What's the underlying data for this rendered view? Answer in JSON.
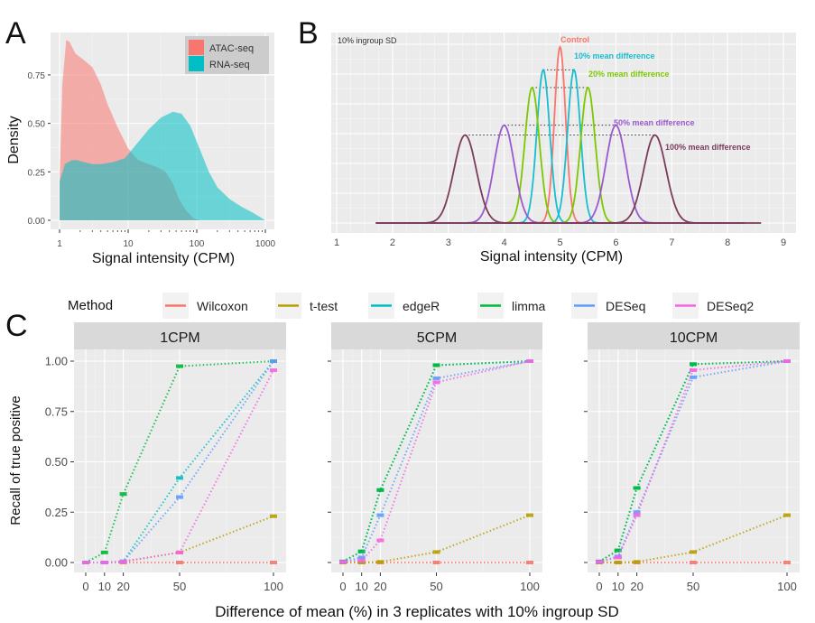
{
  "chart_data": [
    {
      "panel": "A",
      "type": "area",
      "title": "",
      "xlabel": "Signal intensity (CPM)",
      "ylabel": "Density",
      "xscale": "log10",
      "xlim": [
        1,
        1000
      ],
      "ylim": [
        0,
        0.95
      ],
      "xticks": [
        "1",
        "10",
        "100",
        "1000"
      ],
      "xtick_values": [
        1,
        10,
        100,
        1000
      ],
      "yticks": [
        "0.00",
        "0.25",
        "0.50",
        "0.75"
      ],
      "ytick_values": [
        0,
        0.25,
        0.5,
        0.75
      ],
      "grid": true,
      "legend_position": "top-right",
      "series": [
        {
          "name": "ATAC-seq",
          "color": "#F8766D",
          "x": [
            1,
            1.1,
            1.25,
            1.4,
            1.7,
            2.2,
            3,
            4,
            5,
            7,
            10,
            14,
            20,
            28,
            35,
            45,
            55,
            70,
            90,
            110
          ],
          "y": [
            0.2,
            0.7,
            0.93,
            0.92,
            0.86,
            0.83,
            0.79,
            0.7,
            0.6,
            0.48,
            0.37,
            0.31,
            0.29,
            0.27,
            0.25,
            0.19,
            0.11,
            0.05,
            0.01,
            0.0
          ]
        },
        {
          "name": "RNA-seq",
          "color": "#00BFC4",
          "x": [
            1,
            1.2,
            1.5,
            1.8,
            2.3,
            3,
            4,
            6,
            9,
            13,
            20,
            30,
            45,
            60,
            80,
            110,
            150,
            200,
            300,
            450,
            650,
            1000
          ],
          "y": [
            0.2,
            0.29,
            0.31,
            0.31,
            0.3,
            0.29,
            0.29,
            0.3,
            0.32,
            0.39,
            0.47,
            0.53,
            0.56,
            0.55,
            0.49,
            0.37,
            0.25,
            0.17,
            0.11,
            0.07,
            0.04,
            0.0
          ]
        }
      ]
    },
    {
      "panel": "B",
      "type": "line",
      "xlabel": "Signal intensity (CPM)",
      "ylabel": "",
      "xlim": [
        1,
        9
      ],
      "xticks": [
        "1",
        "2",
        "3",
        "4",
        "5",
        "6",
        "7",
        "8",
        "9"
      ],
      "xtick_values": [
        1,
        2,
        3,
        4,
        5,
        6,
        7,
        8,
        9
      ],
      "annotation_sd": "10% ingroup SD",
      "grid": true,
      "series": [
        {
          "name": "Control",
          "label": "Control",
          "color": "#F8766D",
          "means": [
            5.0
          ],
          "sd": 0.1
        },
        {
          "name": "10% mean difference",
          "label": "10% mean difference",
          "color": "#17BECF",
          "means": [
            4.7,
            5.25
          ],
          "sd": 0.115
        },
        {
          "name": "20% mean difference",
          "label": "20% mean difference",
          "color": "#7CC800",
          "means": [
            4.5,
            5.5
          ],
          "sd": 0.13
        },
        {
          "name": "50% mean difference",
          "label": "50% mean difference",
          "color": "#9B59D0",
          "means": [
            4.0,
            6.0
          ],
          "sd": 0.18
        },
        {
          "name": "100% mean difference",
          "label": "100% mean difference",
          "color": "#7B3B5A",
          "means": [
            3.3,
            6.7
          ],
          "sd": 0.2
        }
      ]
    },
    {
      "panel": "C",
      "type": "line",
      "legend_title": "Method",
      "legend_position": "top",
      "xlabel": "Difference of mean (%) in 3 replicates with 10% ingroup SD",
      "ylabel": "Recall of true positive",
      "x": [
        0,
        10,
        20,
        50,
        100
      ],
      "xticks": [
        "0",
        "10",
        "20",
        "50",
        "100"
      ],
      "yticks": [
        "0.00",
        "0.25",
        "0.50",
        "0.75",
        "1.00"
      ],
      "ytick_values": [
        0,
        0.25,
        0.5,
        0.75,
        1.0
      ],
      "ylim": [
        -0.05,
        1.05
      ],
      "xlim": [
        -6,
        106
      ],
      "methods": [
        {
          "name": "Wilcoxon",
          "color": "#F8766D"
        },
        {
          "name": "t-test",
          "color": "#B79F00"
        },
        {
          "name": "edgeR",
          "color": "#00BFC4"
        },
        {
          "name": "limma",
          "color": "#00BA38"
        },
        {
          "name": "DESeq",
          "color": "#619CFF"
        },
        {
          "name": "DESeq2",
          "color": "#F564E3"
        }
      ],
      "facets": [
        {
          "title": "1CPM",
          "series": {
            "Wilcoxon": [
              0,
              0,
              0,
              0,
              0
            ],
            "t-test": [
              0,
              0,
              0.005,
              0.05,
              0.23
            ],
            "edgeR": [
              0,
              0,
              0.005,
              0.42,
              1.0
            ],
            "limma": [
              0,
              0.05,
              0.34,
              0.975,
              1.0
            ],
            "DESeq": [
              0,
              0,
              0.005,
              0.325,
              1.0
            ],
            "DESeq2": [
              0,
              0,
              0.005,
              0.05,
              0.955
            ]
          }
        },
        {
          "title": "5CPM",
          "series": {
            "Wilcoxon": [
              0,
              0,
              0,
              0,
              0
            ],
            "t-test": [
              0,
              0,
              0.003,
              0.052,
              0.235
            ],
            "edgeR": [
              0.005,
              0.055,
              0.36,
              0.98,
              1.0
            ],
            "limma": [
              0.005,
              0.055,
              0.36,
              0.98,
              1.0
            ],
            "DESeq": [
              0.003,
              0.025,
              0.235,
              0.915,
              1.0
            ],
            "DESeq2": [
              0.003,
              0.01,
              0.11,
              0.895,
              1.0
            ]
          }
        },
        {
          "title": "10CPM",
          "series": {
            "Wilcoxon": [
              0,
              0,
              0,
              0,
              0
            ],
            "t-test": [
              0,
              0,
              0.003,
              0.052,
              0.235
            ],
            "edgeR": [
              0.005,
              0.06,
              0.37,
              0.985,
              1.0
            ],
            "limma": [
              0.005,
              0.06,
              0.37,
              0.985,
              1.0
            ],
            "DESeq": [
              0.003,
              0.03,
              0.25,
              0.92,
              1.0
            ],
            "DESeq2": [
              0.003,
              0.025,
              0.235,
              0.955,
              1.0
            ]
          }
        }
      ]
    }
  ],
  "panel_labels": {
    "a": "A",
    "b": "B",
    "c": "C"
  }
}
